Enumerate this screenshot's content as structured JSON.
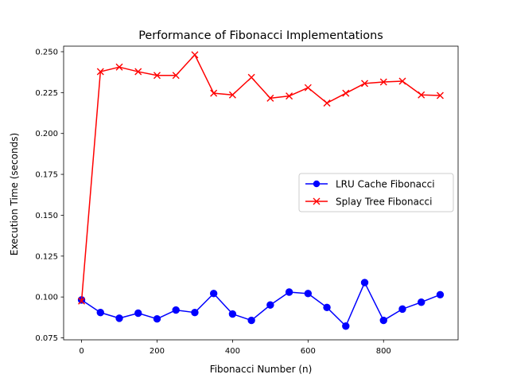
{
  "chart_data": {
    "type": "line",
    "title": "Performance of Fibonacci Implementations",
    "xlabel": "Fibonacci Number (n)",
    "ylabel": "Execution Time (seconds)",
    "x": [
      0,
      50,
      100,
      150,
      200,
      250,
      300,
      350,
      400,
      450,
      500,
      550,
      600,
      650,
      700,
      750,
      800,
      850,
      900,
      950
    ],
    "xlim": [
      -47.5,
      997.5
    ],
    "ylim": [
      0.0738,
      0.2534
    ],
    "xticks": [
      0,
      200,
      400,
      600,
      800
    ],
    "xtick_labels": [
      "0",
      "200",
      "400",
      "600",
      "800"
    ],
    "yticks": [
      0.075,
      0.1,
      0.125,
      0.15,
      0.175,
      0.2,
      0.225,
      0.25
    ],
    "ytick_labels": [
      "0.075",
      "0.100",
      "0.125",
      "0.150",
      "0.175",
      "0.200",
      "0.225",
      "0.250"
    ],
    "grid": false,
    "legend_position": "center-right",
    "series": [
      {
        "name": "LRU Cache Fibonacci",
        "color": "#0000ff",
        "marker": "circle",
        "values": [
          0.0982,
          0.0905,
          0.087,
          0.0901,
          0.0866,
          0.092,
          0.0905,
          0.1021,
          0.0896,
          0.0857,
          0.0951,
          0.103,
          0.1021,
          0.0936,
          0.0822,
          0.1088,
          0.0857,
          0.0926,
          0.0968,
          0.1014
        ]
      },
      {
        "name": "Splay Tree Fibonacci",
        "color": "#ff0000",
        "marker": "x",
        "values": [
          0.0975,
          0.2378,
          0.2406,
          0.2378,
          0.2355,
          0.2355,
          0.2481,
          0.2246,
          0.2236,
          0.2343,
          0.2216,
          0.2229,
          0.228,
          0.2186,
          0.2246,
          0.2306,
          0.2315,
          0.232,
          0.2236,
          0.2232
        ]
      }
    ]
  }
}
